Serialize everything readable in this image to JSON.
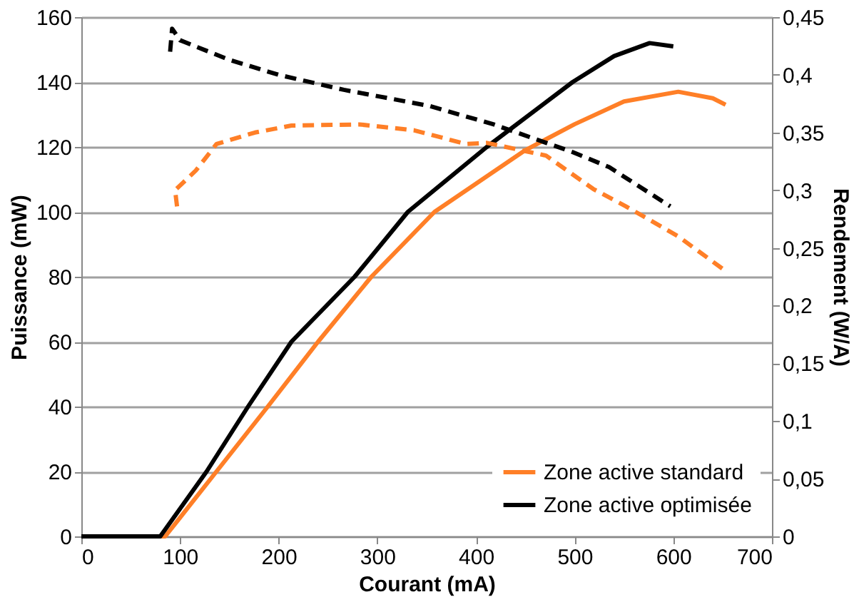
{
  "chart_data": {
    "type": "line",
    "xlabel": "Courant (mA)",
    "ylabel": "Puissance (mW)",
    "y2label": "Rendement (W/A)",
    "xlim": [
      0,
      700
    ],
    "xticks": [
      0,
      100,
      200,
      300,
      400,
      500,
      600,
      700
    ],
    "ylim": [
      0,
      160
    ],
    "yticks": [
      0,
      20,
      40,
      60,
      80,
      100,
      120,
      140,
      160
    ],
    "y2lim": [
      0,
      0.45
    ],
    "y2ticks": [
      {
        "value": 0,
        "label": "0"
      },
      {
        "value": 0.05,
        "label": "0,05"
      },
      {
        "value": 0.1,
        "label": "0,1"
      },
      {
        "value": 0.15,
        "label": "0,15"
      },
      {
        "value": 0.2,
        "label": "0,2"
      },
      {
        "value": 0.25,
        "label": "0,25"
      },
      {
        "value": 0.3,
        "label": "0,3"
      },
      {
        "value": 0.35,
        "label": "0,35"
      },
      {
        "value": 0.4,
        "label": "0,4"
      },
      {
        "value": 0.45,
        "label": "0,45"
      }
    ],
    "grid": "y",
    "legend": "bottom right",
    "marker": "none",
    "series": [
      {
        "name": "Zone active standard",
        "color": "#ff7f27",
        "line_style": "solid",
        "x": [
          0,
          85,
          137,
          189,
          240,
          294,
          358,
          450,
          500,
          550,
          605,
          640,
          653
        ],
        "values": [
          0,
          0,
          20,
          40,
          60,
          80,
          100,
          119,
          127,
          134,
          137,
          135,
          133
        ]
      },
      {
        "name": "Zone active optimisée",
        "color": "#000000",
        "line_style": "solid",
        "x": [
          0,
          80,
          127,
          169,
          213,
          277,
          331,
          411,
          498,
          540,
          576,
          600
        ],
        "values": [
          0,
          0,
          20,
          40,
          60,
          80,
          100,
          120,
          140,
          148,
          152,
          151
        ]
      },
      {
        "color": "#ff7f27",
        "line_style": "dashed",
        "axis": "y2",
        "x": [
          97,
          95,
          116,
          137,
          176,
          213,
          282,
          337,
          390,
          411,
          471,
          519,
          552,
          605,
          653
        ],
        "values": [
          0.286,
          0.3,
          0.317,
          0.34,
          0.35,
          0.356,
          0.357,
          0.352,
          0.34,
          0.341,
          0.33,
          0.301,
          0.286,
          0.26,
          0.23
        ]
      },
      {
        "color": "#000000",
        "line_style": "dashed",
        "axis": "y2",
        "x": [
          90,
          92,
          100,
          150,
          200,
          266,
          353,
          418,
          498,
          535,
          597
        ],
        "values": [
          0.42,
          0.44,
          0.43,
          0.413,
          0.4,
          0.387,
          0.373,
          0.357,
          0.333,
          0.32,
          0.286
        ]
      }
    ]
  }
}
